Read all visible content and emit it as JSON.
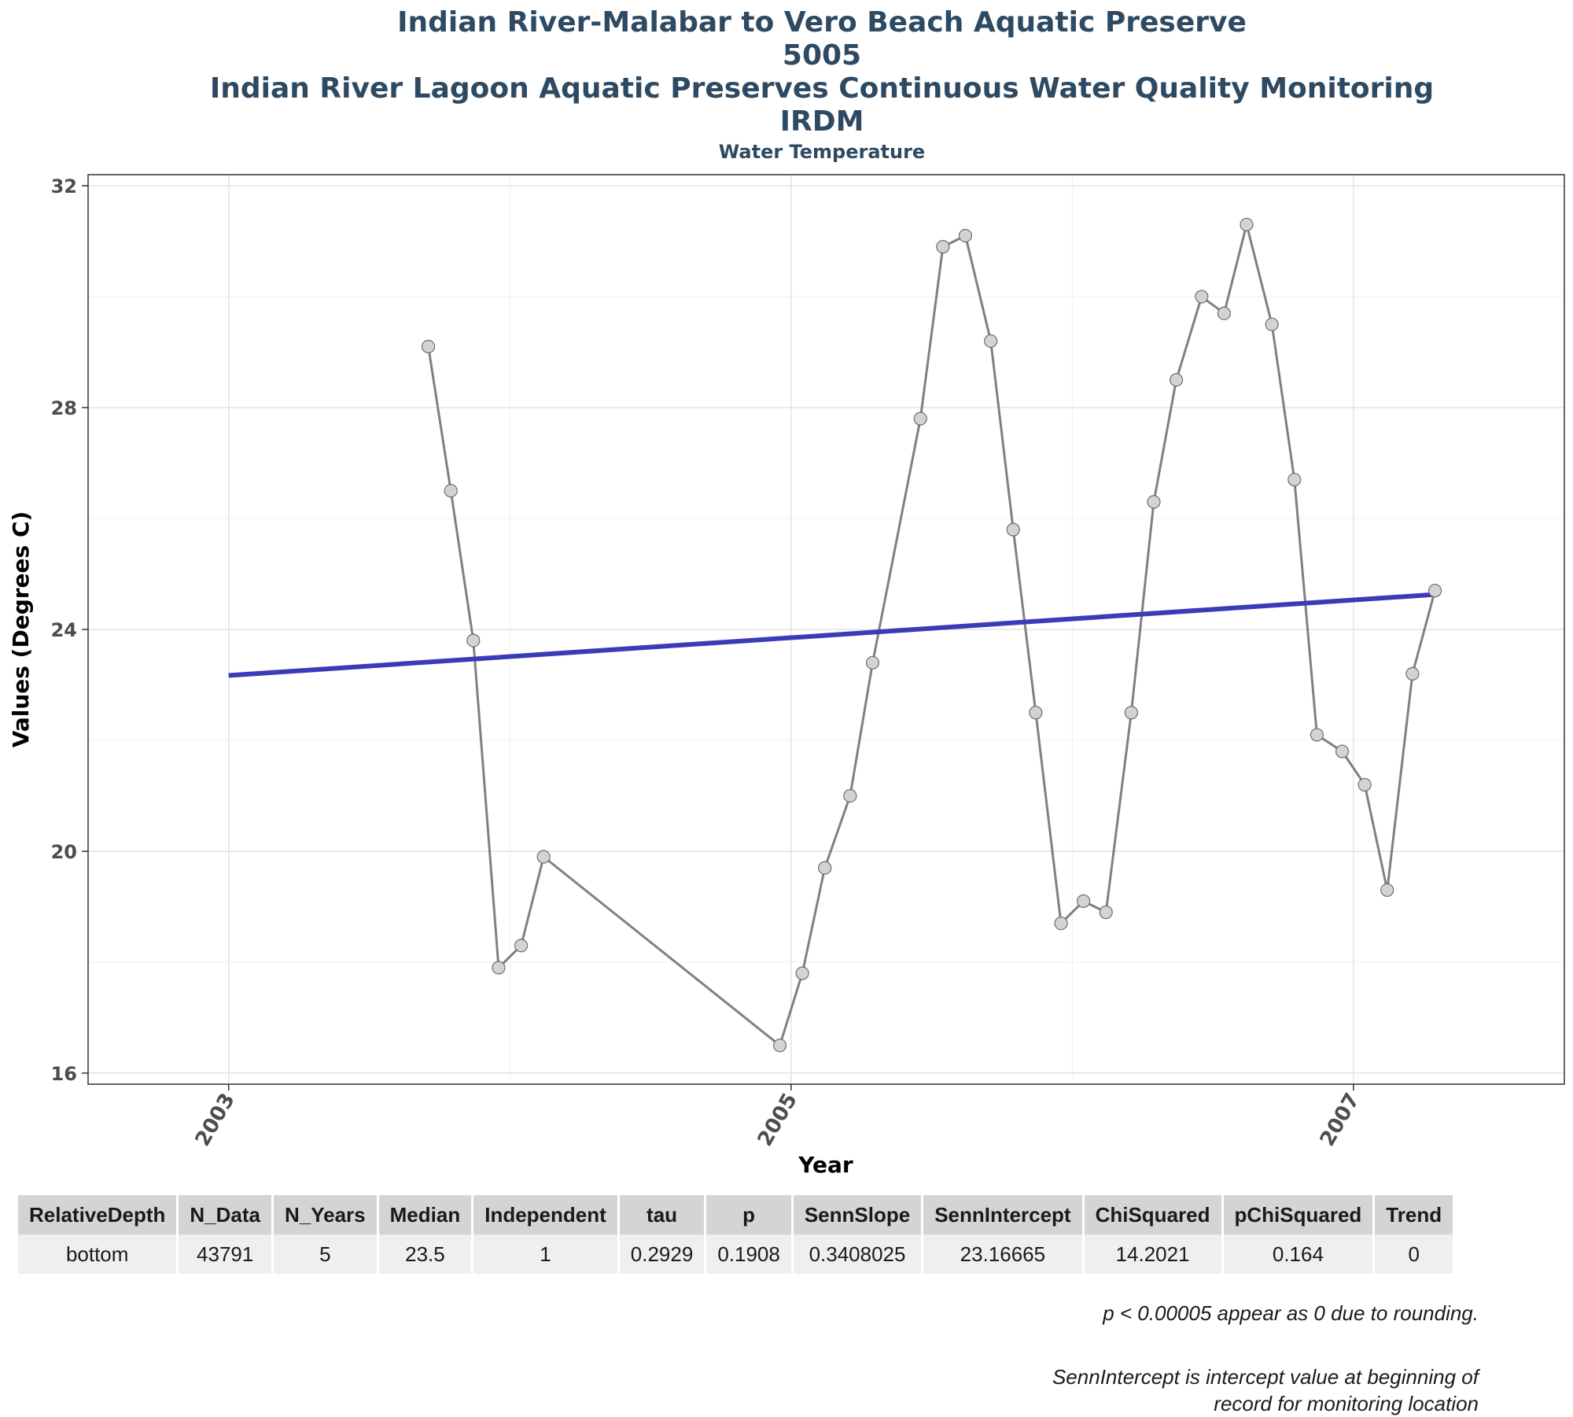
{
  "titles": {
    "line1": "Indian River-Malabar to Vero Beach Aquatic Preserve",
    "line2": "5005",
    "line3": "Indian River Lagoon Aquatic Preserves Continuous Water Quality Monitoring",
    "line4": "IRDM",
    "subtitle": "Water Temperature"
  },
  "colors": {
    "title": "#2e4a62",
    "series_line": "#808080",
    "point_fill": "#d3d3d3",
    "trend_line": "#3b3bb8"
  },
  "chart_data": {
    "type": "line",
    "title": "Water Temperature",
    "xlabel": "Year",
    "ylabel": "Values (Degrees C)",
    "xlim": [
      2002.5,
      2007.75
    ],
    "ylim": [
      16,
      32
    ],
    "x_ticks": [
      2003,
      2005,
      2007
    ],
    "y_ticks": [
      16,
      20,
      24,
      28,
      32
    ],
    "grid": true,
    "series": [
      {
        "x": [
          2003.71,
          2003.79,
          2003.87,
          2003.96,
          2004.04,
          2004.12,
          2004.96,
          2005.04,
          2005.12,
          2005.21,
          2005.29,
          2005.46,
          2005.54,
          2005.62,
          2005.71,
          2005.79,
          2005.87,
          2005.96,
          2006.04,
          2006.12,
          2006.21,
          2006.29,
          2006.37,
          2006.46,
          2006.54,
          2006.62,
          2006.71,
          2006.79,
          2006.87,
          2006.96,
          2007.04,
          2007.12,
          2007.21,
          2007.29
        ],
        "y": [
          29.1,
          26.5,
          23.8,
          17.9,
          18.3,
          19.9,
          16.5,
          17.8,
          19.7,
          21.0,
          23.4,
          27.8,
          30.9,
          31.1,
          29.2,
          25.8,
          22.5,
          18.7,
          19.1,
          18.9,
          22.5,
          26.3,
          28.5,
          30.0,
          29.7,
          31.3,
          29.5,
          26.7,
          22.1,
          21.8,
          21.2,
          19.3,
          23.2,
          24.7
        ]
      }
    ],
    "trend_line": {
      "x": [
        2003.0,
        2007.29
      ],
      "y": [
        23.17,
        24.63
      ]
    }
  },
  "table": {
    "headers": [
      "RelativeDepth",
      "N_Data",
      "N_Years",
      "Median",
      "Independent",
      "tau",
      "p",
      "SennSlope",
      "SennIntercept",
      "ChiSquared",
      "pChiSquared",
      "Trend"
    ],
    "row": [
      "bottom",
      "43791",
      "5",
      "23.5",
      "1",
      "0.2929",
      "0.1908",
      "0.3408025",
      "23.16665",
      "14.2021",
      "0.164",
      "0"
    ]
  },
  "notes": {
    "note1": "p < 0.00005 appear as 0 due to rounding.",
    "note2a": "SennIntercept is intercept value at beginning of",
    "note2b": "record for monitoring location"
  }
}
